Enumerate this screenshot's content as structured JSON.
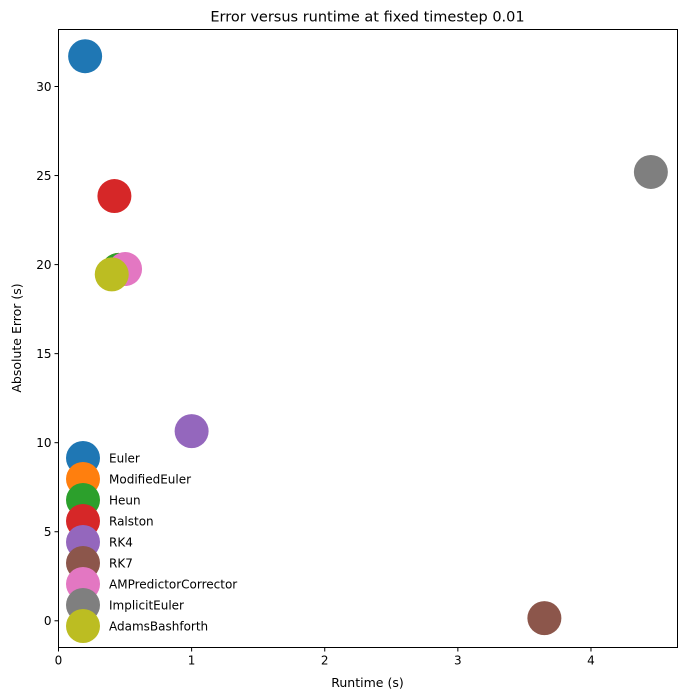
{
  "chart_data": {
    "type": "scatter",
    "title": "Error versus runtime at fixed timestep 0.01",
    "xlabel": "Runtime (s)",
    "ylabel": "Absolute Error (s)",
    "xlim": [
      0,
      4.65
    ],
    "ylim": [
      -1.5,
      33.2
    ],
    "xticks": [
      0,
      1,
      2,
      3,
      4
    ],
    "yticks": [
      0,
      5,
      10,
      15,
      20,
      25,
      30
    ],
    "legend_position": "lower-left",
    "series": [
      {
        "name": "Euler",
        "color": "#1f77b4",
        "x": 0.2,
        "y": 31.7
      },
      {
        "name": "ModifiedEuler",
        "color": "#ff7f0e",
        "x": 0.45,
        "y": 19.7
      },
      {
        "name": "Heun",
        "color": "#2ca02c",
        "x": 0.45,
        "y": 19.7
      },
      {
        "name": "Ralston",
        "color": "#d62728",
        "x": 0.42,
        "y": 23.85
      },
      {
        "name": "RK4",
        "color": "#9467bd",
        "x": 1.0,
        "y": 10.65
      },
      {
        "name": "RK7",
        "color": "#8c564b",
        "x": 3.65,
        "y": 0.15
      },
      {
        "name": "AMPredictorCorrector",
        "color": "#e377c2",
        "x": 0.5,
        "y": 19.75
      },
      {
        "name": "ImplicitEuler",
        "color": "#7f7f7f",
        "x": 4.45,
        "y": 25.2
      },
      {
        "name": "AdamsBashforth",
        "color": "#bcbd22",
        "x": 0.4,
        "y": 19.45
      }
    ]
  }
}
